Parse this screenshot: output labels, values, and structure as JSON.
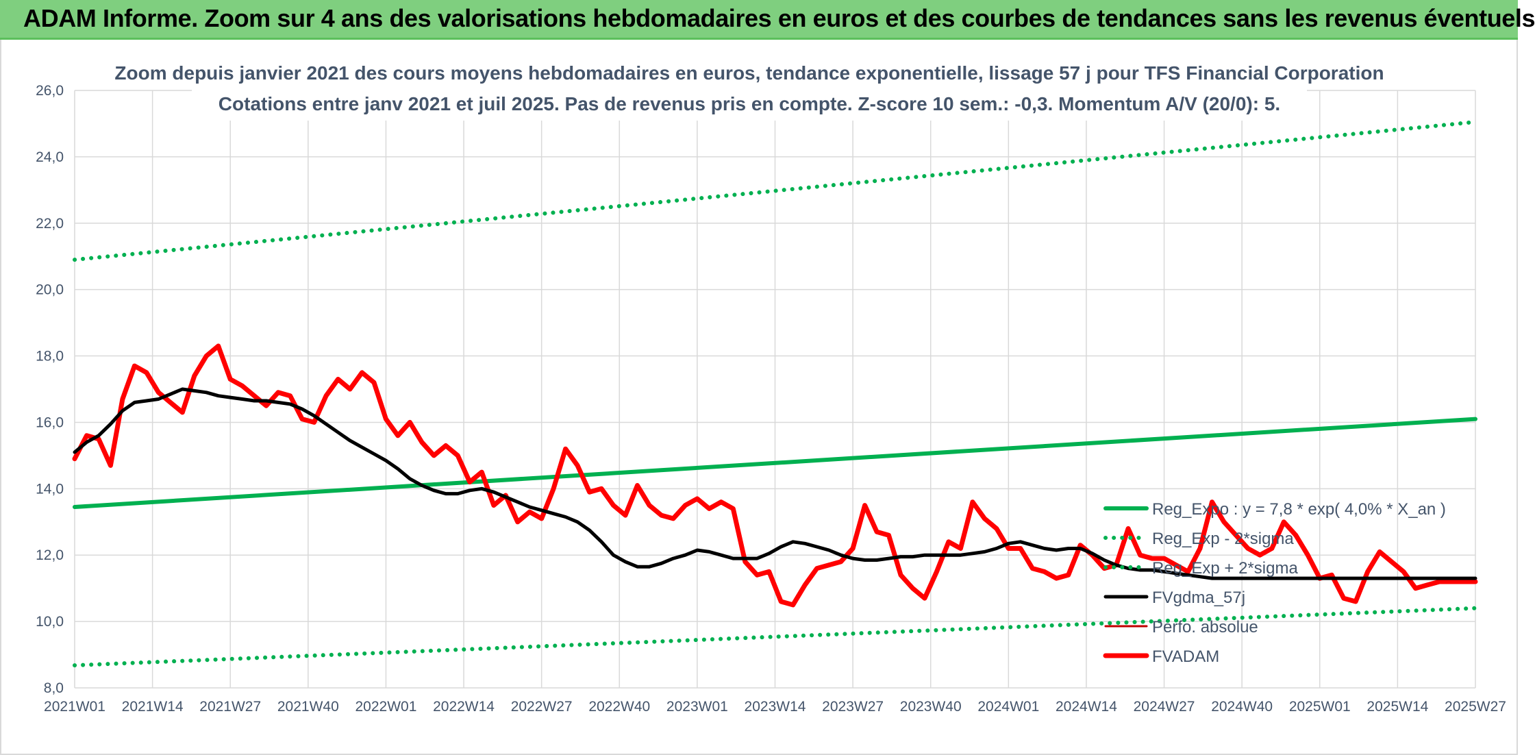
{
  "banner": {
    "title": "ADAM Informe. Zoom sur 4 ans des valorisations hebdomadaires en euros et des courbes de tendances sans les revenus éventuels"
  },
  "colors": {
    "banner_bg": "#7fcf7f",
    "reg_expo": "#00b050",
    "fvgdma": "#000000",
    "fvadam": "#ff0000",
    "text": "#44546a",
    "grid": "#d9d9d9"
  },
  "chart_data": {
    "type": "line",
    "title": "Zoom depuis janvier 2021 des cours moyens hebdomadaires en euros, tendance exponentielle, lissage 57 j pour TFS Financial Corporation",
    "subtitle": "Cotations entre janv 2021 et juil 2025. Pas de revenus pris en compte. Z-score 10 sem.: -0,3. Momentum A/V (20/0): 5.",
    "xlabel": "",
    "ylabel": "",
    "ylim": [
      8,
      26
    ],
    "y_ticks": [
      "8,0",
      "10,0",
      "12,0",
      "14,0",
      "16,0",
      "18,0",
      "20,0",
      "22,0",
      "24,0",
      "26,0"
    ],
    "x_ticks": [
      "2021W01",
      "2021W14",
      "2021W27",
      "2021W40",
      "2022W01",
      "2022W14",
      "2022W27",
      "2022W40",
      "2023W01",
      "2023W14",
      "2023W27",
      "2023W40",
      "2024W01",
      "2024W14",
      "2024W27",
      "2024W40",
      "2025W01",
      "2025W14",
      "2025W27"
    ],
    "grid": true,
    "legend_position": "bottom-right",
    "series": [
      {
        "name": "Reg_Expo : y = 7,8 * exp( 4,0% *  X_an )",
        "style": "solid",
        "color": "#00b050",
        "x": [
          0,
          234
        ],
        "y": [
          13.45,
          16.1
        ]
      },
      {
        "name": "Reg_Exp - 2*sigma",
        "style": "dotted",
        "color": "#00b050",
        "x": [
          0,
          234
        ],
        "y": [
          8.68,
          10.4
        ]
      },
      {
        "name": "Reg_Exp + 2*sigma",
        "style": "dotted",
        "color": "#00b050",
        "x": [
          0,
          234
        ],
        "y": [
          20.9,
          25.05
        ]
      },
      {
        "name": "FVgdma_57j",
        "style": "solid",
        "color": "#000000",
        "x": [
          0,
          2,
          4,
          6,
          8,
          10,
          12,
          14,
          16,
          18,
          20,
          22,
          24,
          26,
          28,
          30,
          32,
          34,
          36,
          38,
          40,
          42,
          44,
          46,
          48,
          50,
          52,
          54,
          56,
          58,
          60,
          62,
          64,
          66,
          68,
          70,
          72,
          74,
          76,
          78,
          80,
          82,
          84,
          86,
          88,
          90,
          92,
          94,
          96,
          98,
          100,
          102,
          104,
          106,
          108,
          110,
          112,
          114,
          116,
          118,
          120,
          122,
          124,
          126,
          128,
          130,
          132,
          134,
          136,
          138,
          140,
          142,
          144,
          146,
          148,
          150,
          152,
          154,
          156,
          158,
          160,
          162,
          164,
          166,
          168,
          170,
          172,
          174,
          176,
          178,
          180,
          182,
          184,
          186,
          188,
          190,
          192,
          194,
          196,
          198,
          200,
          202,
          204,
          206,
          208,
          210,
          212,
          214,
          216,
          218,
          220,
          222,
          224,
          226,
          228,
          230,
          232,
          234
        ],
        "y": [
          15.1,
          15.4,
          15.6,
          15.95,
          16.35,
          16.6,
          16.65,
          16.7,
          16.85,
          17.0,
          16.95,
          16.9,
          16.8,
          16.75,
          16.7,
          16.65,
          16.65,
          16.6,
          16.55,
          16.4,
          16.2,
          15.95,
          15.7,
          15.45,
          15.25,
          15.05,
          14.85,
          14.6,
          14.3,
          14.1,
          13.95,
          13.85,
          13.85,
          13.95,
          14.0,
          13.9,
          13.75,
          13.6,
          13.45,
          13.35,
          13.25,
          13.15,
          13.0,
          12.75,
          12.4,
          12.0,
          11.8,
          11.65,
          11.65,
          11.75,
          11.9,
          12.0,
          12.15,
          12.1,
          12.0,
          11.9,
          11.9,
          11.9,
          12.05,
          12.25,
          12.4,
          12.35,
          12.25,
          12.15,
          12.0,
          11.9,
          11.85,
          11.85,
          11.9,
          11.95,
          11.95,
          12.0,
          12.0,
          12.0,
          12.0,
          12.05,
          12.1,
          12.2,
          12.35,
          12.4,
          12.3,
          12.2,
          12.15,
          12.2,
          12.2,
          12.05,
          11.85,
          11.7,
          11.6,
          11.55,
          11.55,
          11.5,
          11.45,
          11.4,
          11.35,
          11.3,
          11.3,
          11.3,
          11.3,
          11.3,
          11.3,
          11.3,
          11.3,
          11.3,
          11.3,
          11.3,
          11.3,
          11.3,
          11.3,
          11.3,
          11.3,
          11.3,
          11.3,
          11.3,
          11.3,
          11.3,
          11.3,
          11.3
        ],
        "length": 234
      },
      {
        "name": "Perfo. absolue",
        "style": "solid",
        "color": "#c00000",
        "x": [],
        "y": []
      },
      {
        "name": "FVADAM",
        "style": "solid",
        "color": "#ff0000",
        "x": [
          0,
          2,
          4,
          6,
          8,
          10,
          12,
          14,
          16,
          18,
          20,
          22,
          24,
          26,
          28,
          30,
          32,
          34,
          36,
          38,
          40,
          42,
          44,
          46,
          48,
          50,
          52,
          54,
          56,
          58,
          60,
          62,
          64,
          66,
          68,
          70,
          72,
          74,
          76,
          78,
          80,
          82,
          84,
          86,
          88,
          90,
          92,
          94,
          96,
          98,
          100,
          102,
          104,
          106,
          108,
          110,
          112,
          114,
          116,
          118,
          120,
          122,
          124,
          126,
          128,
          130,
          132,
          134,
          136,
          138,
          140,
          142,
          144,
          146,
          148,
          150,
          152,
          154,
          156,
          158,
          160,
          162,
          164,
          166,
          168,
          170,
          172,
          174,
          176,
          178,
          180,
          182,
          184,
          186,
          188,
          190,
          192,
          194,
          196,
          198,
          200,
          202,
          204,
          206,
          208,
          210,
          212,
          214,
          216,
          218,
          220,
          222,
          224,
          226,
          228,
          230,
          232,
          234
        ],
        "y": [
          14.9,
          15.6,
          15.5,
          14.7,
          16.7,
          17.7,
          17.5,
          16.9,
          16.6,
          16.3,
          17.4,
          18.0,
          18.3,
          17.3,
          17.1,
          16.8,
          16.5,
          16.9,
          16.8,
          16.1,
          16.0,
          16.8,
          17.3,
          17.0,
          17.5,
          17.2,
          16.1,
          15.6,
          16.0,
          15.4,
          15.0,
          15.3,
          15.0,
          14.2,
          14.5,
          13.5,
          13.8,
          13.0,
          13.3,
          13.1,
          14.0,
          15.2,
          14.7,
          13.9,
          14.0,
          13.5,
          13.2,
          14.1,
          13.5,
          13.2,
          13.1,
          13.5,
          13.7,
          13.4,
          13.6,
          13.4,
          11.8,
          11.4,
          11.5,
          10.6,
          10.5,
          11.1,
          11.6,
          11.7,
          11.8,
          12.2,
          13.5,
          12.7,
          12.6,
          11.4,
          11.0,
          10.7,
          11.5,
          12.4,
          12.2,
          13.6,
          13.1,
          12.8,
          12.2,
          12.2,
          11.6,
          11.5,
          11.3,
          11.4,
          12.3,
          12.0,
          11.6,
          11.7,
          12.8,
          12.0,
          11.9,
          11.9,
          11.7,
          11.5,
          12.2,
          13.6,
          13.0,
          12.6,
          12.2,
          12.0,
          12.2,
          13.0,
          12.6,
          12.0,
          11.3,
          11.4,
          10.7,
          10.6,
          11.5,
          12.1,
          11.8,
          11.5,
          11.0,
          11.1,
          11.2,
          11.2,
          11.2,
          11.2
        ]
      }
    ]
  }
}
